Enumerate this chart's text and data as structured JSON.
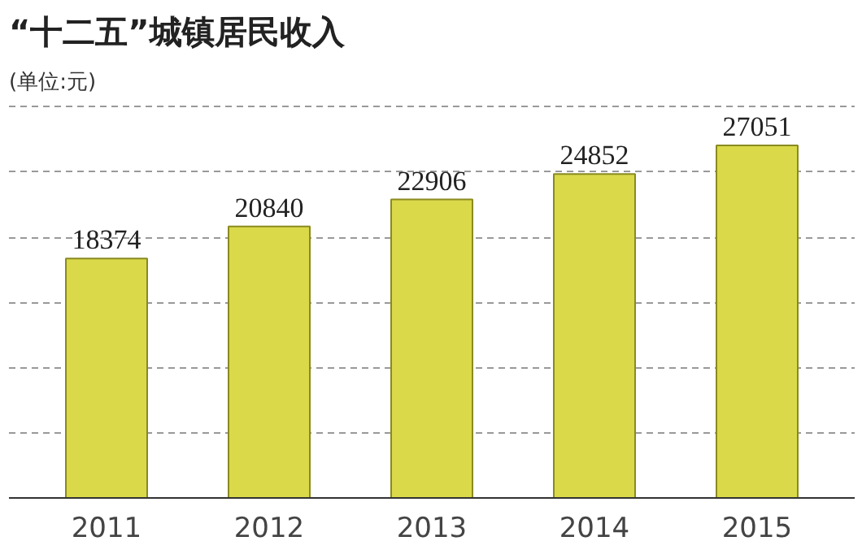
{
  "chart_data": {
    "type": "bar",
    "title": "“十二五”城镇居民收入",
    "subtitle": "(单位:元)",
    "categories": [
      "2011",
      "2012",
      "2013",
      "2014",
      "2015"
    ],
    "values": [
      18374,
      20840,
      22906,
      24852,
      27051
    ],
    "color": "#d9d94a",
    "data_labels": true,
    "grid": "y",
    "tick_labels": "x"
  }
}
